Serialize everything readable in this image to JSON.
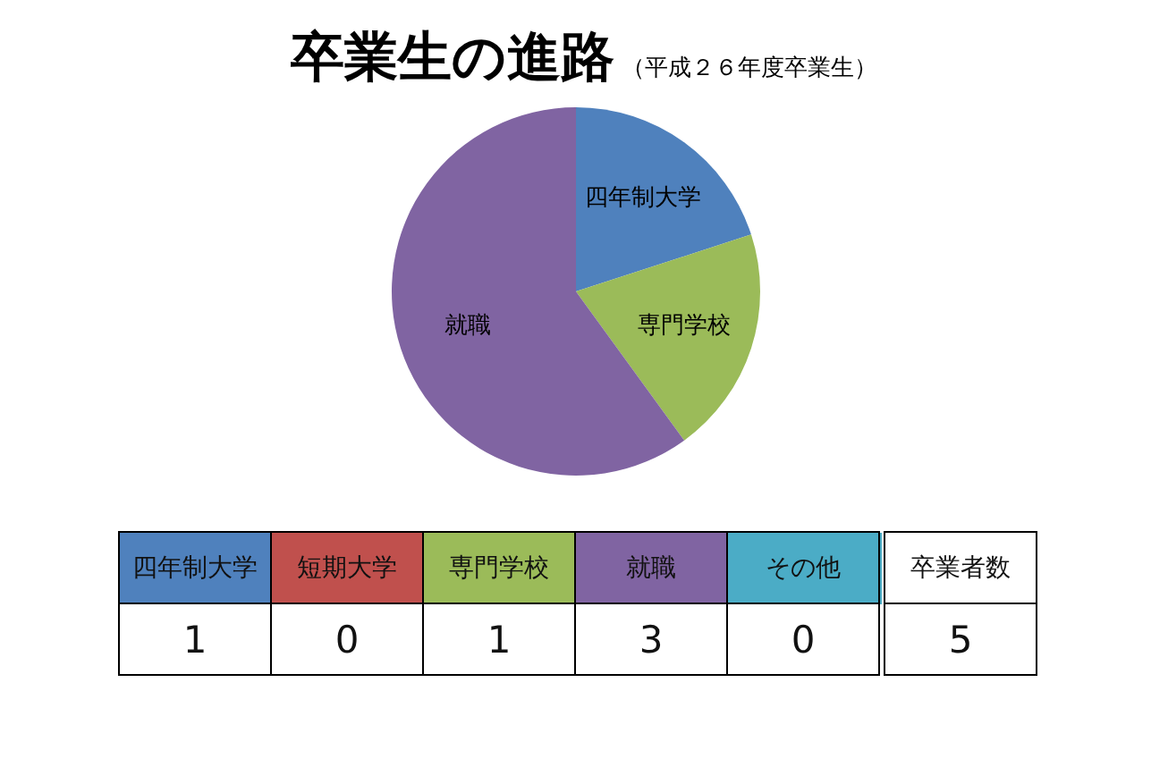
{
  "chart_data": [
    {
      "type": "pie",
      "title": "卒業生の進路",
      "subtitle": "（平成２６年度卒業生）",
      "categories": [
        "四年制大学",
        "専門学校",
        "就職"
      ],
      "values": [
        20,
        20,
        60
      ],
      "colors": [
        "#4f81bd",
        "#9bbb59",
        "#8064a2"
      ]
    },
    {
      "type": "other",
      "categories": [
        "四年制大学",
        "短期大学",
        "専門学校",
        "就職",
        "その他"
      ],
      "values": [
        1,
        0,
        1,
        3,
        0
      ],
      "colors": [
        "#4f81bd",
        "#c0504d",
        "#9bbb59",
        "#8064a2",
        "#4bacc6"
      ],
      "data_labels": true,
      "annotations": [
        "卒業者数"
      ],
      "totals": [
        "5"
      ]
    }
  ]
}
